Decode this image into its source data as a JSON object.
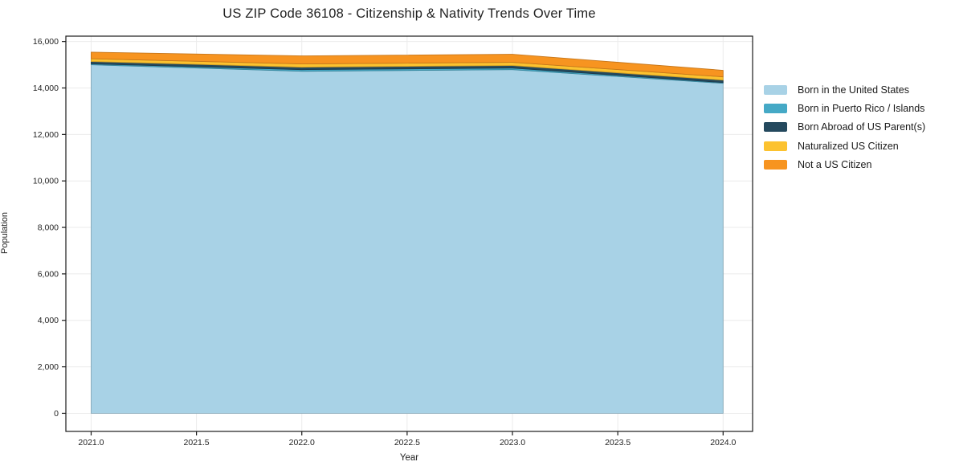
{
  "figure": {
    "title": "US ZIP Code 36108 - Citizenship & Nativity Trends Over Time",
    "xlabel": "Year",
    "ylabel": "Population"
  },
  "chart_data": {
    "type": "area",
    "stacked": true,
    "title": "US ZIP Code 36108 - Citizenship & Nativity Trends Over Time",
    "xlabel": "Year",
    "ylabel": "Population",
    "grid": true,
    "legend_position": "outside-right",
    "x": [
      2021,
      2022,
      2023,
      2024
    ],
    "series": [
      {
        "name": "Born in the United States",
        "color": "#a8d2e6",
        "values": [
          15000,
          14720,
          14790,
          14200
        ]
      },
      {
        "name": "Born in Puerto Rico / Islands",
        "color": "#45a9c6",
        "values": [
          40,
          70,
          70,
          35
        ]
      },
      {
        "name": "Born Abroad of US Parent(s)",
        "color": "#24495e",
        "values": [
          100,
          105,
          105,
          105
        ]
      },
      {
        "name": "Naturalized US Citizen",
        "color": "#fcc22f",
        "values": [
          120,
          140,
          140,
          140
        ]
      },
      {
        "name": "Not a US Citizen",
        "color": "#f79420",
        "values": [
          280,
          345,
          345,
          280
        ]
      }
    ],
    "totals": [
      15540,
      15380,
      15450,
      14760
    ],
    "xlim": [
      2020.88,
      2024.14
    ],
    "ylim": [
      -780,
      16230
    ],
    "xticks": [
      {
        "value": 2021.0,
        "label": "2021.0"
      },
      {
        "value": 2021.5,
        "label": "2021.5"
      },
      {
        "value": 2022.0,
        "label": "2022.0"
      },
      {
        "value": 2022.5,
        "label": "2022.5"
      },
      {
        "value": 2023.0,
        "label": "2023.0"
      },
      {
        "value": 2023.5,
        "label": "2023.5"
      },
      {
        "value": 2024.0,
        "label": "2024.0"
      }
    ],
    "yticks": [
      {
        "value": 0,
        "label": "0"
      },
      {
        "value": 2000,
        "label": "2,000"
      },
      {
        "value": 4000,
        "label": "4,000"
      },
      {
        "value": 6000,
        "label": "6,000"
      },
      {
        "value": 8000,
        "label": "8,000"
      },
      {
        "value": 10000,
        "label": "10,000"
      },
      {
        "value": 12000,
        "label": "12,000"
      },
      {
        "value": 14000,
        "label": "14,000"
      },
      {
        "value": 16000,
        "label": "16,000"
      }
    ],
    "colors": {
      "grid": "#ebebeb",
      "spine": "#1a1a1a",
      "tick_label": "#222222",
      "background": "#ffffff"
    }
  }
}
